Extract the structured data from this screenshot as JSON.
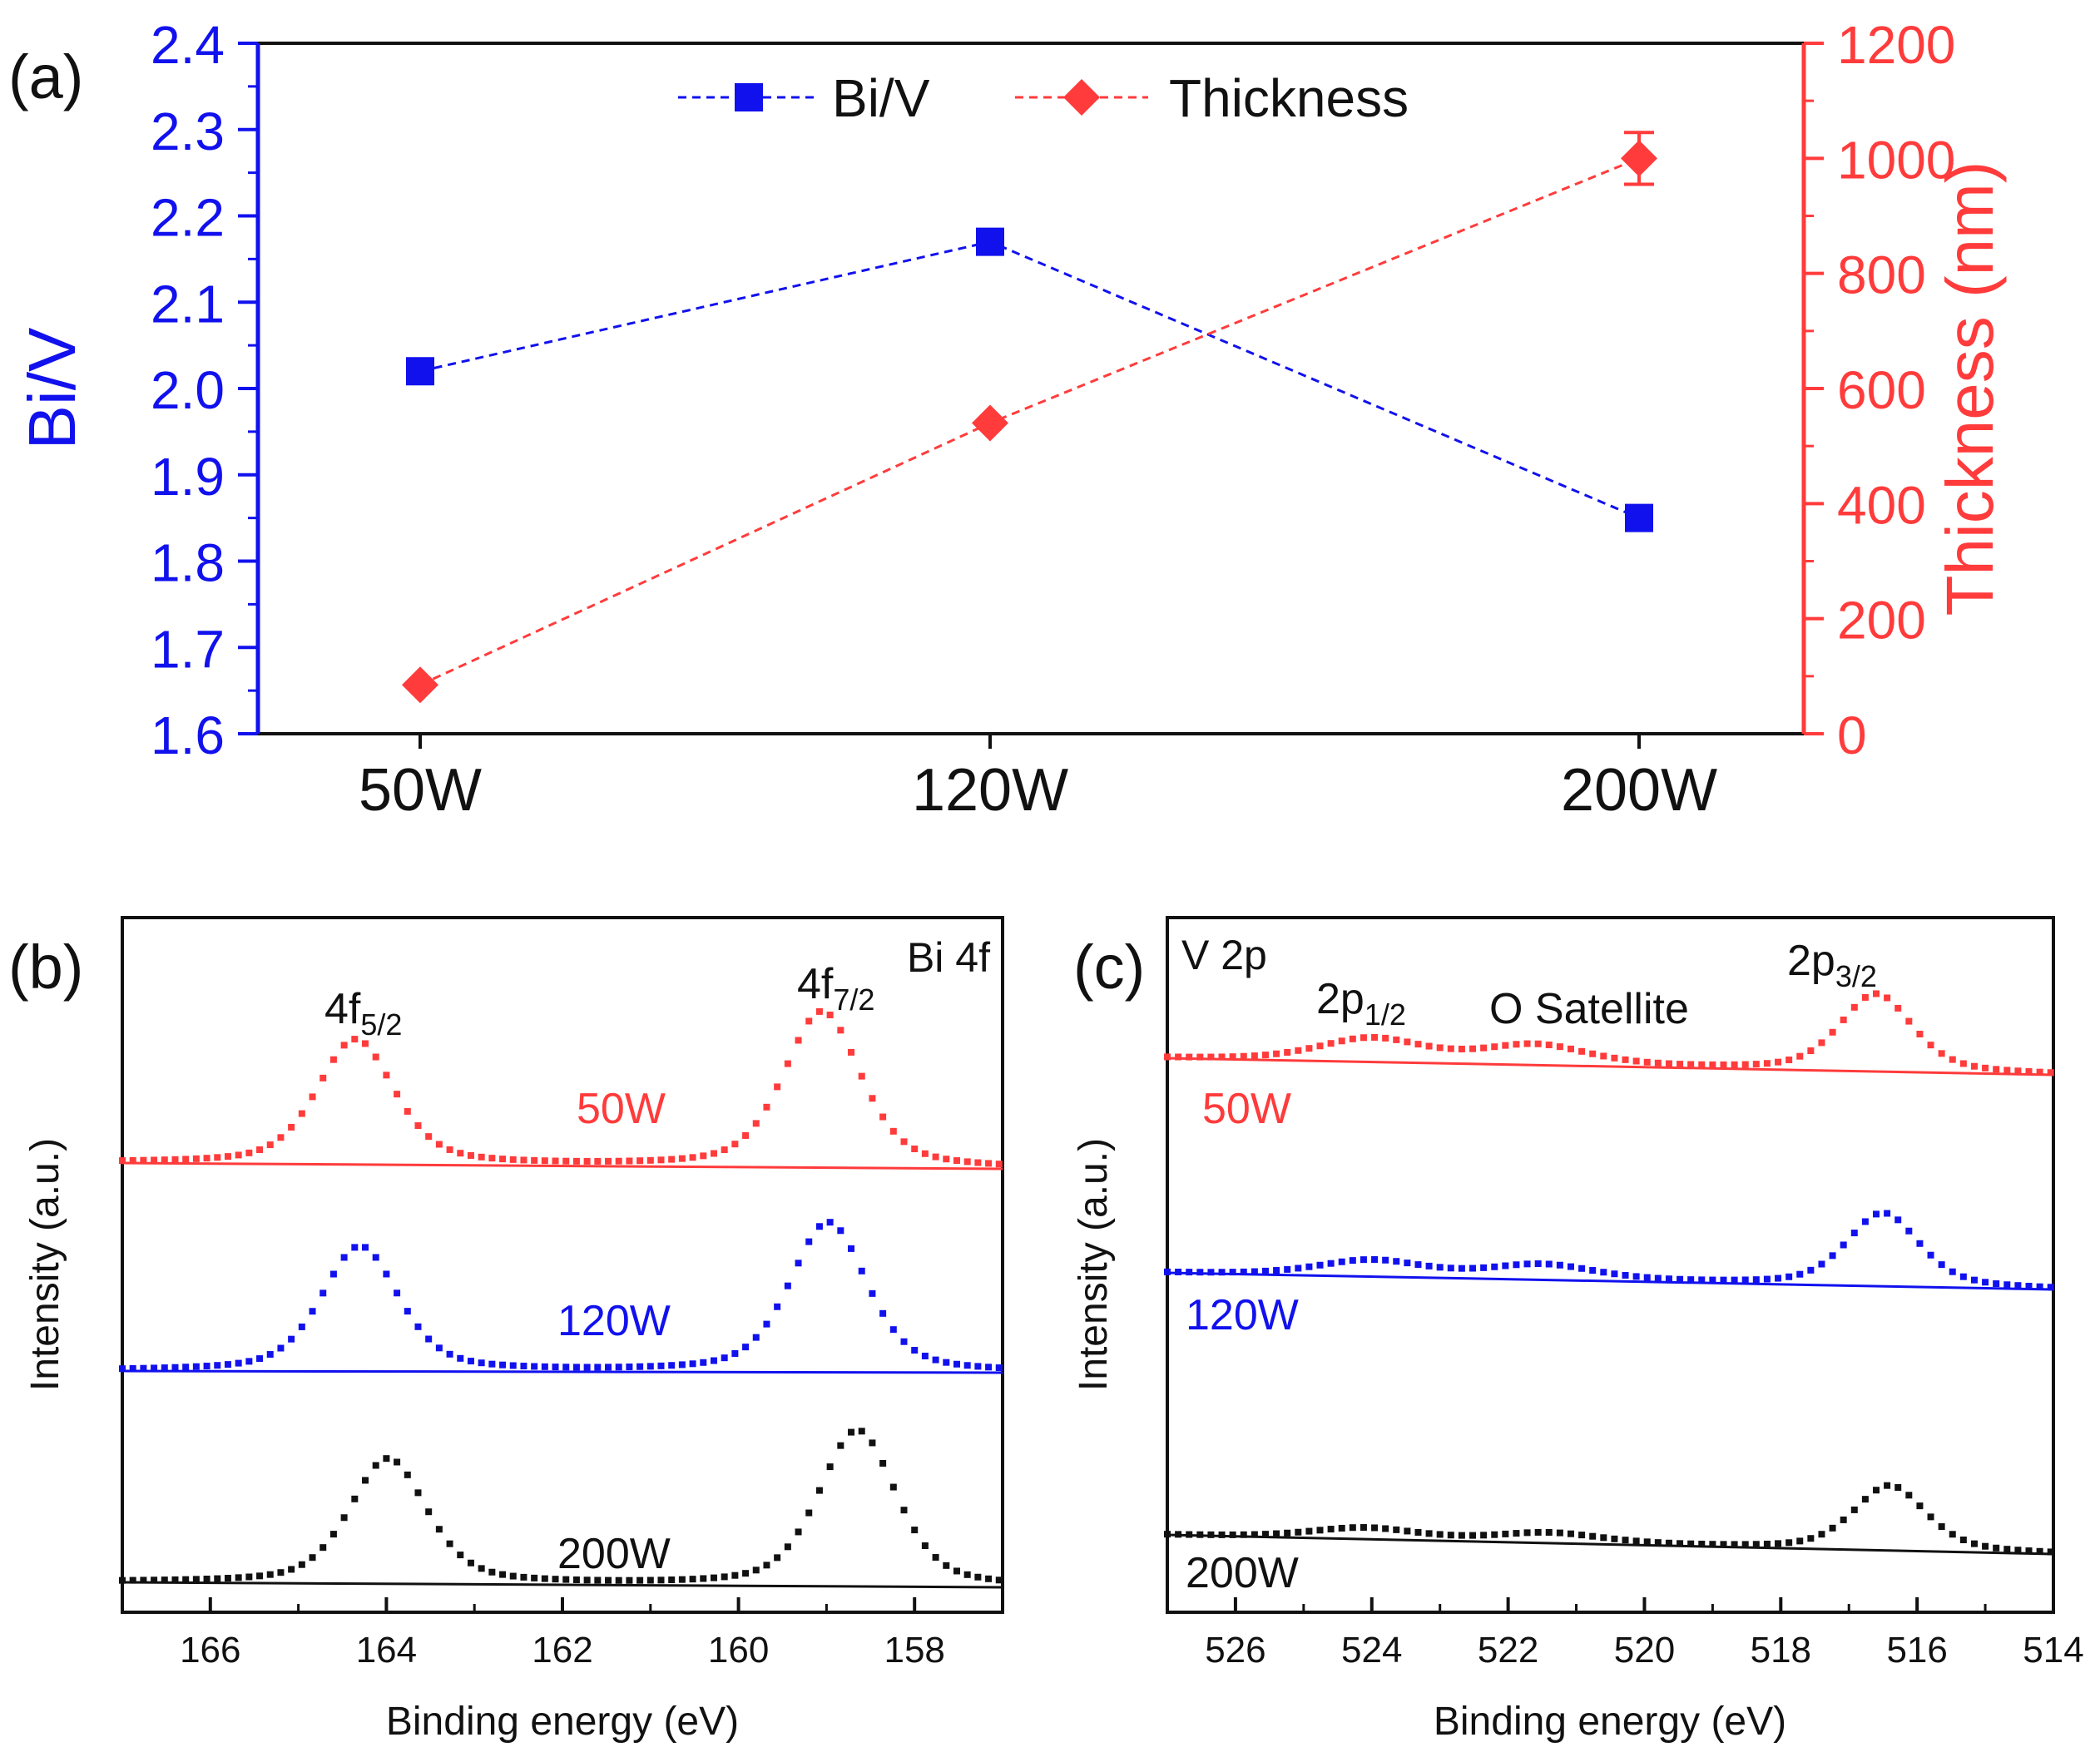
{
  "colors": {
    "blue": "#1111ee",
    "red": "#ff3b3b",
    "black": "#111111"
  },
  "chart_data": [
    {
      "panel": "a",
      "panel_label": "(a)",
      "type": "line",
      "categories": [
        "50W",
        "120W",
        "200W"
      ],
      "ylabel_left": "Bi/V",
      "ylabel_right": "Thickness (nm)",
      "ylim_left": [
        1.6,
        2.4
      ],
      "ylim_right": [
        0,
        1200
      ],
      "yticks_left": [
        "1.6",
        "1.7",
        "1.8",
        "1.9",
        "2.0",
        "2.1",
        "2.2",
        "2.3",
        "2.4"
      ],
      "yticks_right": [
        "0",
        "200",
        "400",
        "600",
        "800",
        "1000",
        "1200"
      ],
      "legend_position": "top-center",
      "series": [
        {
          "name": "Bi/V",
          "axis": "left",
          "marker": "square",
          "values": [
            2.02,
            2.17,
            1.85
          ]
        },
        {
          "name": "Thickness",
          "axis": "right",
          "marker": "diamond",
          "values": [
            85,
            540,
            1000
          ],
          "error": [
            0,
            0,
            45
          ]
        }
      ]
    },
    {
      "panel": "b",
      "panel_label": "(b)",
      "type": "line",
      "title": "Bi 4f",
      "xlabel": "Binding energy (eV)",
      "ylabel": "Intensity (a.u.)",
      "xlim": [
        167,
        157
      ],
      "xticks": [
        "166",
        "164",
        "162",
        "160",
        "158"
      ],
      "peak_labels": {
        "f52_main": "4f",
        "f52_sub": "5/2",
        "f72_main": "4f",
        "f72_sub": "7/2"
      },
      "series": [
        {
          "name": "50W",
          "peaks": [
            {
              "center": 164.35,
              "height": 1.0
            },
            {
              "center": 159.05,
              "height": 1.25
            }
          ]
        },
        {
          "name": "120W",
          "peaks": [
            {
              "center": 164.3,
              "height": 1.0
            },
            {
              "center": 158.98,
              "height": 1.2
            }
          ]
        },
        {
          "name": "200W",
          "peaks": [
            {
              "center": 163.98,
              "height": 1.0
            },
            {
              "center": 158.65,
              "height": 1.25
            }
          ]
        }
      ]
    },
    {
      "panel": "c",
      "panel_label": "(c)",
      "type": "line",
      "title": "V 2p",
      "xlabel": "Binding energy (eV)",
      "ylabel": "Intensity (a.u.)",
      "xlim": [
        527,
        514
      ],
      "xticks": [
        "526",
        "524",
        "522",
        "520",
        "518",
        "516",
        "514"
      ],
      "peak_labels": {
        "p12_main": "2p",
        "p12_sub": "1/2",
        "satellite": "O Satellite",
        "p32_main": "2p",
        "p32_sub": "3/2"
      },
      "series": [
        {
          "name": "50W",
          "peaks": [
            {
              "center": 516.6,
              "height": 1.0
            },
            {
              "center": 524.0,
              "height": 0.3
            },
            {
              "center": 521.6,
              "height": 0.25
            }
          ]
        },
        {
          "name": "120W",
          "peaks": [
            {
              "center": 516.5,
              "height": 1.0
            },
            {
              "center": 524.0,
              "height": 0.22
            },
            {
              "center": 521.5,
              "height": 0.2
            }
          ]
        },
        {
          "name": "200W",
          "peaks": [
            {
              "center": 516.4,
              "height": 1.0
            },
            {
              "center": 524.1,
              "height": 0.17
            },
            {
              "center": 521.4,
              "height": 0.15
            }
          ]
        }
      ]
    }
  ]
}
